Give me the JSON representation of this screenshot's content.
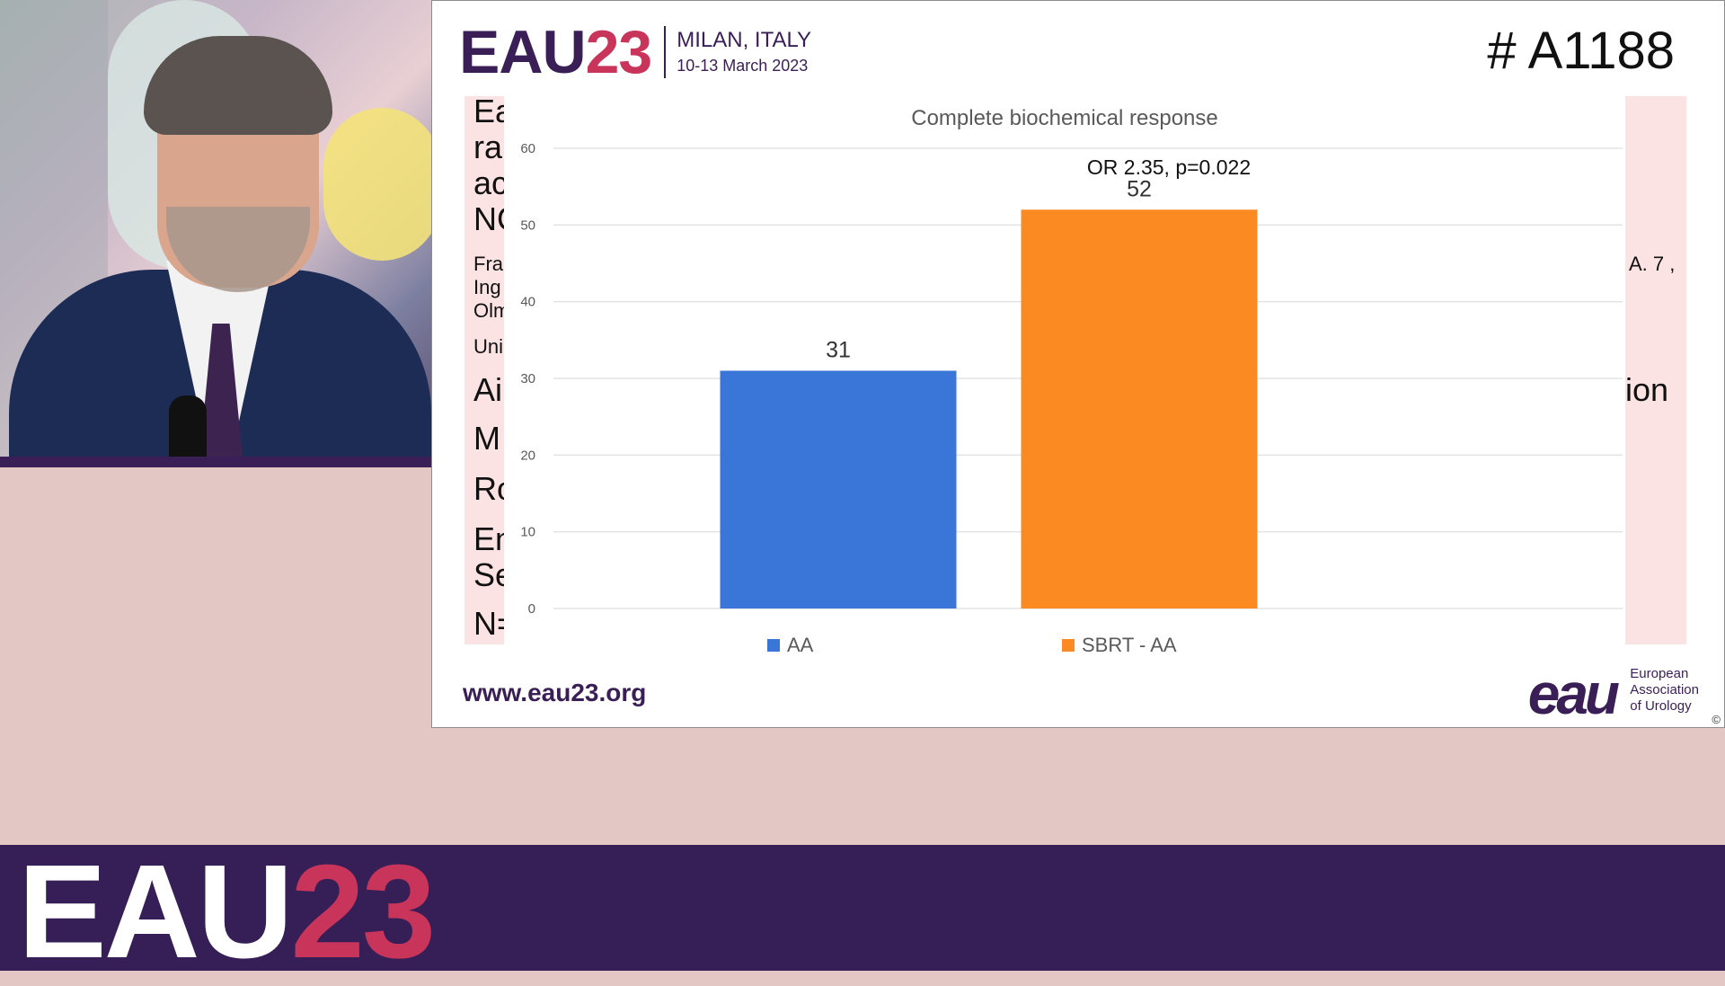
{
  "slide": {
    "brand_name": "EAU",
    "brand_year": "23",
    "location": "MILAN, ITALY",
    "dates": "10-13 March 2023",
    "abstract_id": "# A1188",
    "website": "www.eau23.org",
    "eau_logo": "eau",
    "eau_org_lines": [
      "European",
      "Association",
      "of Urology"
    ],
    "copyright": "©",
    "background_fragments": {
      "left": [
        "Ea",
        "ra",
        "ac",
        "NC",
        "Fra",
        "Ing",
        "Olm",
        "Uni",
        "Ai",
        "M",
        "Ro",
        "En",
        "Se",
        "N="
      ],
      "right": [
        "A. 7 ,",
        "ion"
      ]
    }
  },
  "banner": {
    "brand_name": "EAU",
    "brand_year": "23"
  },
  "colors": {
    "eau_purple": "#361f57",
    "eau_red": "#c8345a",
    "series_aa": "#3a76d8",
    "series_sbrt": "#fb8a22"
  },
  "chart_data": {
    "type": "bar",
    "title": "Complete biochemical response",
    "annotation": "OR 2.35, p=0.022",
    "categories": [
      "AA",
      "SBRT - AA"
    ],
    "values": [
      31,
      52
    ],
    "colors": [
      "#3a76d8",
      "#fb8a22"
    ],
    "ylim": [
      0,
      60
    ],
    "yticks": [
      0,
      10,
      20,
      30,
      40,
      50,
      60
    ],
    "grid": true,
    "legend": "bottom",
    "xlabel": "",
    "ylabel": ""
  }
}
